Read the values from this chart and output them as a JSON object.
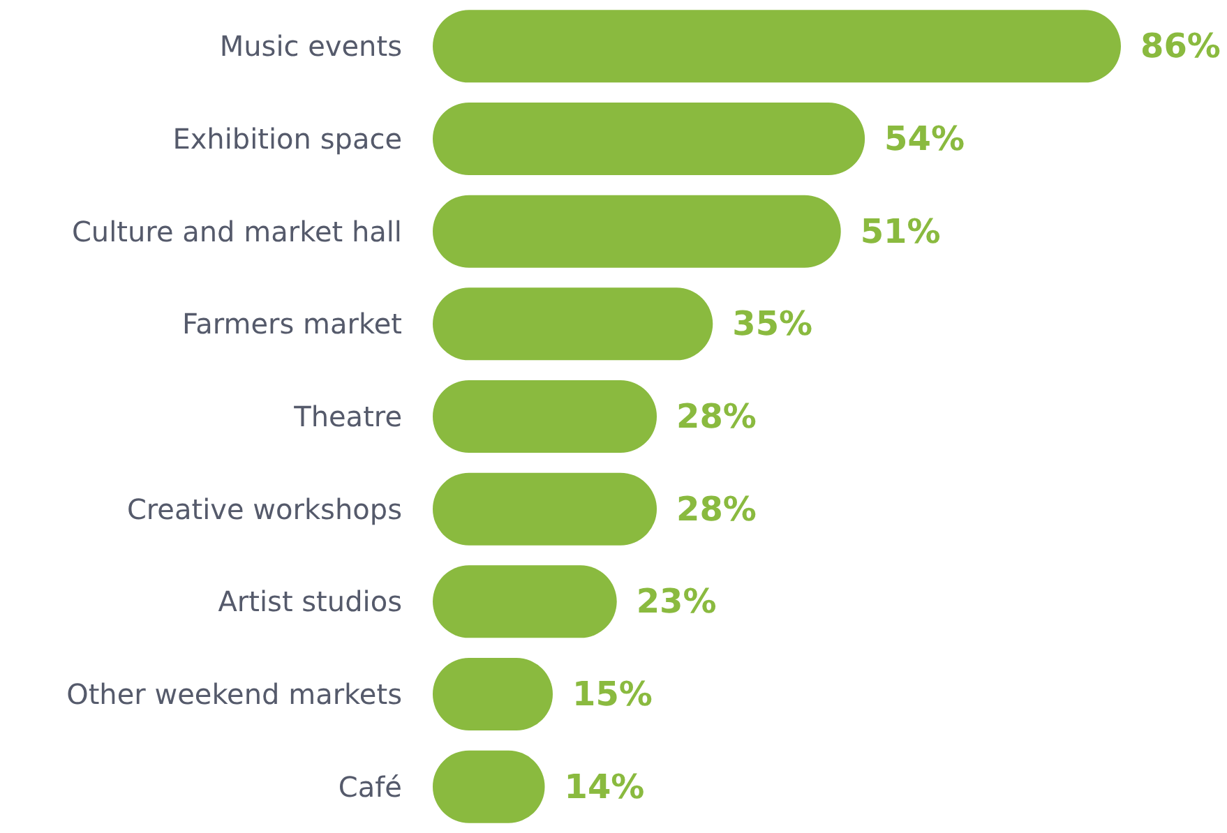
{
  "chart_data": {
    "type": "bar",
    "orientation": "horizontal",
    "categories": [
      "Music events",
      "Exhibition space",
      "Culture and market hall",
      "Farmers market",
      "Theatre",
      "Creative workshops",
      "Artist studios",
      "Other weekend markets",
      "Café"
    ],
    "values": [
      86,
      54,
      51,
      35,
      28,
      28,
      23,
      15,
      14
    ],
    "value_labels": [
      "86%",
      "54%",
      "51%",
      "35%",
      "28%",
      "28%",
      "23%",
      "15%",
      "14%"
    ],
    "color": "#8aba3f"
  }
}
